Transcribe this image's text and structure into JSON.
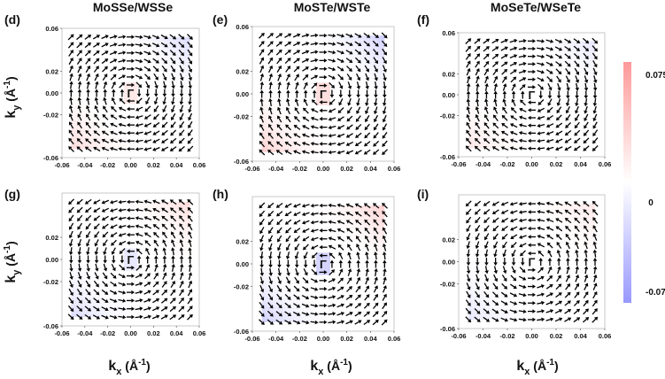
{
  "column_titles": [
    "MoSSe/WSSe",
    "MoSTe/WSTe",
    "MoSeTe/WSeTe"
  ],
  "axis": {
    "xlabel": "k",
    "xlabel_sub": "x",
    "ylabel": "k",
    "ylabel_sub": "y",
    "unit_text": " (Å",
    "unit_sup": "-1",
    "unit_close": ")"
  },
  "gamma_label": "Γ",
  "colorbar": {
    "labels": [
      "0.075",
      "0",
      "-0.075"
    ],
    "min": -0.075,
    "max": 0.075,
    "colors": [
      "#ff9999",
      "#ffffff",
      "#9999ff"
    ]
  },
  "chart_data": [
    {
      "panel": "(d)",
      "type": "quiver",
      "xlim": [
        -0.06,
        0.06
      ],
      "ylim": [
        -0.06,
        0.06
      ],
      "xticks": [
        "-0.06",
        "-0.04",
        "-0.02",
        "0.00",
        "0.02",
        "0.04",
        "0.06"
      ],
      "yticks": [
        "0.06",
        "0.02",
        "0.00",
        "-0.02",
        "-0.06"
      ],
      "vortex": "clockwise",
      "corner_shading": {
        "top_right": -0.03,
        "bottom_left": 0.03,
        "center": 0.02
      }
    },
    {
      "panel": "(e)",
      "type": "quiver",
      "xlim": [
        -0.06,
        0.06
      ],
      "ylim": [
        -0.06,
        0.06
      ],
      "xticks": [
        "-0.06",
        "-0.04",
        "-0.02",
        "0.00",
        "0.02",
        "0.04",
        "0.06"
      ],
      "yticks": [
        "0.06",
        "0.02",
        "0.00",
        "-0.02",
        "-0.06"
      ],
      "vortex": "clockwise",
      "corner_shading": {
        "top_right": -0.04,
        "bottom_left": 0.04,
        "center": 0.03
      }
    },
    {
      "panel": "(f)",
      "type": "quiver",
      "xlim": [
        -0.06,
        0.06
      ],
      "ylim": [
        -0.06,
        0.06
      ],
      "xticks": [
        "-0.06",
        "-0.04",
        "-0.02",
        "0.00",
        "0.02",
        "0.04",
        "0.06"
      ],
      "yticks": [
        "0.06",
        "0.02",
        "0.00",
        "-0.02",
        "-0.06"
      ],
      "vortex": "clockwise",
      "corner_shading": {
        "top_right": -0.02,
        "bottom_left": 0.02,
        "center": 0.0
      }
    },
    {
      "panel": "(g)",
      "type": "quiver",
      "xlim": [
        -0.06,
        0.06
      ],
      "ylim": [
        -0.06,
        0.06
      ],
      "xticks": [
        "-0.06",
        "-0.04",
        "-0.02",
        "0.00",
        "0.02",
        "0.04",
        "0.06"
      ],
      "yticks": [
        "0.02",
        "0.00",
        "-0.02",
        "-0.06"
      ],
      "vortex": "counterclockwise",
      "corner_shading": {
        "top_right": 0.03,
        "bottom_left": -0.03,
        "center": -0.02
      }
    },
    {
      "panel": "(h)",
      "type": "quiver",
      "xlim": [
        -0.06,
        0.06
      ],
      "ylim": [
        -0.06,
        0.06
      ],
      "xticks": [
        "-0.06",
        "-0.04",
        "-0.02",
        "0.00",
        "0.02",
        "0.04",
        "0.06"
      ],
      "yticks": [
        "0.02",
        "0.00",
        "-0.02",
        "-0.06"
      ],
      "vortex": "counterclockwise",
      "corner_shading": {
        "top_right": 0.04,
        "bottom_left": -0.04,
        "center": -0.04
      }
    },
    {
      "panel": "(i)",
      "type": "quiver",
      "xlim": [
        -0.06,
        0.06
      ],
      "ylim": [
        -0.06,
        0.06
      ],
      "xticks": [
        "-0.06",
        "-0.04",
        "-0.02",
        "0.00",
        "0.02",
        "0.04",
        "0.06"
      ],
      "yticks": [
        "0.02",
        "0.00",
        "-0.02",
        "-0.06"
      ],
      "vortex": "counterclockwise",
      "corner_shading": {
        "top_right": 0.02,
        "bottom_left": -0.02,
        "center": 0.0
      }
    }
  ]
}
